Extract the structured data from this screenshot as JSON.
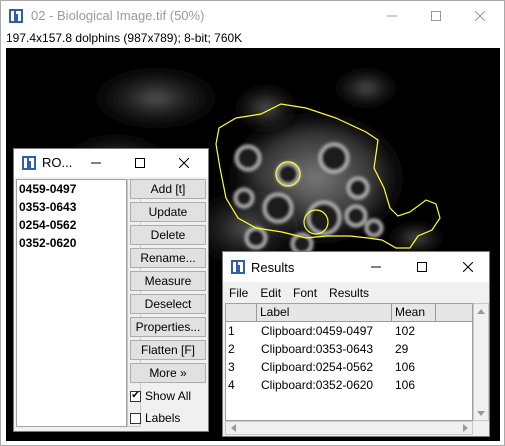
{
  "main_window": {
    "title": "02 - Biological Image.tif (50%)",
    "info": "197.4x157.8 dolphins (987x789); 8-bit; 760K"
  },
  "roi_manager": {
    "title": "RO...",
    "items": [
      "0459-0497",
      "0353-0643",
      "0254-0562",
      "0352-0620"
    ],
    "buttons": [
      "Add [t]",
      "Update",
      "Delete",
      "Rename...",
      "Measure",
      "Deselect",
      "Properties...",
      "Flatten [F]",
      "More »"
    ],
    "show_all_label": "Show All",
    "show_all_checked": true,
    "labels_label": "Labels",
    "labels_checked": false
  },
  "results": {
    "title": "Results",
    "menu": [
      "File",
      "Edit",
      "Font",
      "Results"
    ],
    "columns": [
      "",
      "Label",
      "Mean"
    ],
    "rows": [
      {
        "n": "1",
        "label": "Clipboard:0459-0497",
        "mean": "102"
      },
      {
        "n": "2",
        "label": "Clipboard:0353-0643",
        "mean": "29"
      },
      {
        "n": "3",
        "label": "Clipboard:0254-0562",
        "mean": "106"
      },
      {
        "n": "4",
        "label": "Clipboard:0352-0620",
        "mean": "106"
      }
    ]
  },
  "colors": {
    "roi_outline": "#ffff33",
    "app_icon": "#2f5fa8"
  },
  "icons": [
    "imagej-app-icon",
    "minimize-icon",
    "maximize-icon",
    "close-icon",
    "checkmark-icon",
    "scroll-arrow-icon"
  ]
}
